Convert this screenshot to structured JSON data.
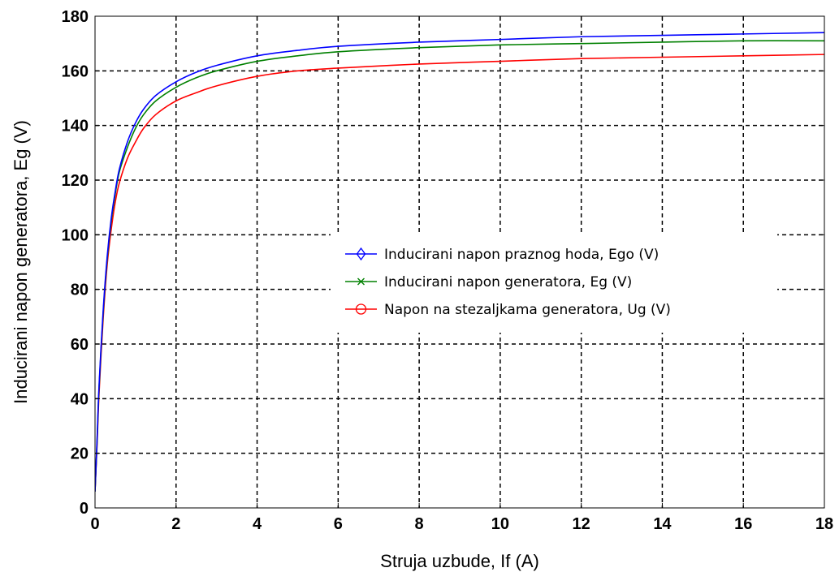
{
  "chart_data": {
    "type": "line",
    "title": "",
    "xlabel": "Struja uzbude, If (A)",
    "ylabel": "Inducirani napon generatora, Eg (V)",
    "xlim": [
      0,
      18
    ],
    "ylim": [
      0,
      180
    ],
    "xticks": [
      0,
      2,
      4,
      6,
      8,
      10,
      12,
      14,
      16,
      18
    ],
    "yticks": [
      0,
      20,
      40,
      60,
      80,
      100,
      120,
      140,
      160,
      180
    ],
    "grid": true,
    "grid_style": "dashed",
    "legend_position": "center-right",
    "series": [
      {
        "name": "Inducirani napon praznog hoda, Ego (V)",
        "color": "#0000ff",
        "marker": "diamond",
        "x": [
          0,
          0.05,
          0.1,
          0.2,
          0.3,
          0.4,
          0.5,
          0.6,
          0.8,
          1.0,
          1.2,
          1.5,
          2.0,
          2.5,
          3.0,
          4.0,
          5.0,
          6.0,
          8.0,
          10.0,
          12.0,
          14.0,
          16.0,
          18.0
        ],
        "y": [
          6,
          25,
          45,
          72,
          92,
          106,
          116,
          124,
          134,
          141,
          146,
          151,
          156,
          159.5,
          162,
          165.5,
          167.5,
          169,
          170.5,
          171.5,
          172.5,
          173,
          173.5,
          174
        ]
      },
      {
        "name": "Inducirani napon generatora, Eg (V)",
        "color": "#008000",
        "marker": "x",
        "x": [
          0,
          0.05,
          0.1,
          0.2,
          0.3,
          0.4,
          0.5,
          0.6,
          0.8,
          1.0,
          1.2,
          1.5,
          2.0,
          2.5,
          3.0,
          4.0,
          5.0,
          6.0,
          8.0,
          10.0,
          12.0,
          14.0,
          16.0,
          18.0
        ],
        "y": [
          6,
          24,
          44,
          71,
          91,
          105,
          115,
          123,
          132,
          139,
          144,
          149,
          154,
          157.5,
          160,
          163.5,
          165.5,
          167,
          168.5,
          169.5,
          170,
          170.5,
          171,
          171
        ]
      },
      {
        "name": "Napon na stezaljkama generatora, Ug (V)",
        "color": "#ff0000",
        "marker": "circle",
        "x": [
          0,
          0.05,
          0.1,
          0.2,
          0.3,
          0.4,
          0.5,
          0.6,
          0.8,
          1.0,
          1.2,
          1.5,
          2.0,
          2.5,
          3.0,
          4.0,
          5.0,
          6.0,
          8.0,
          10.0,
          12.0,
          14.0,
          16.0,
          18.0
        ],
        "y": [
          6,
          23,
          42,
          69,
          89,
          102,
          112,
          119,
          128,
          134,
          139,
          144,
          149,
          152,
          154.5,
          158,
          160,
          161,
          162.5,
          163.5,
          164.5,
          165,
          165.5,
          166
        ]
      }
    ]
  }
}
